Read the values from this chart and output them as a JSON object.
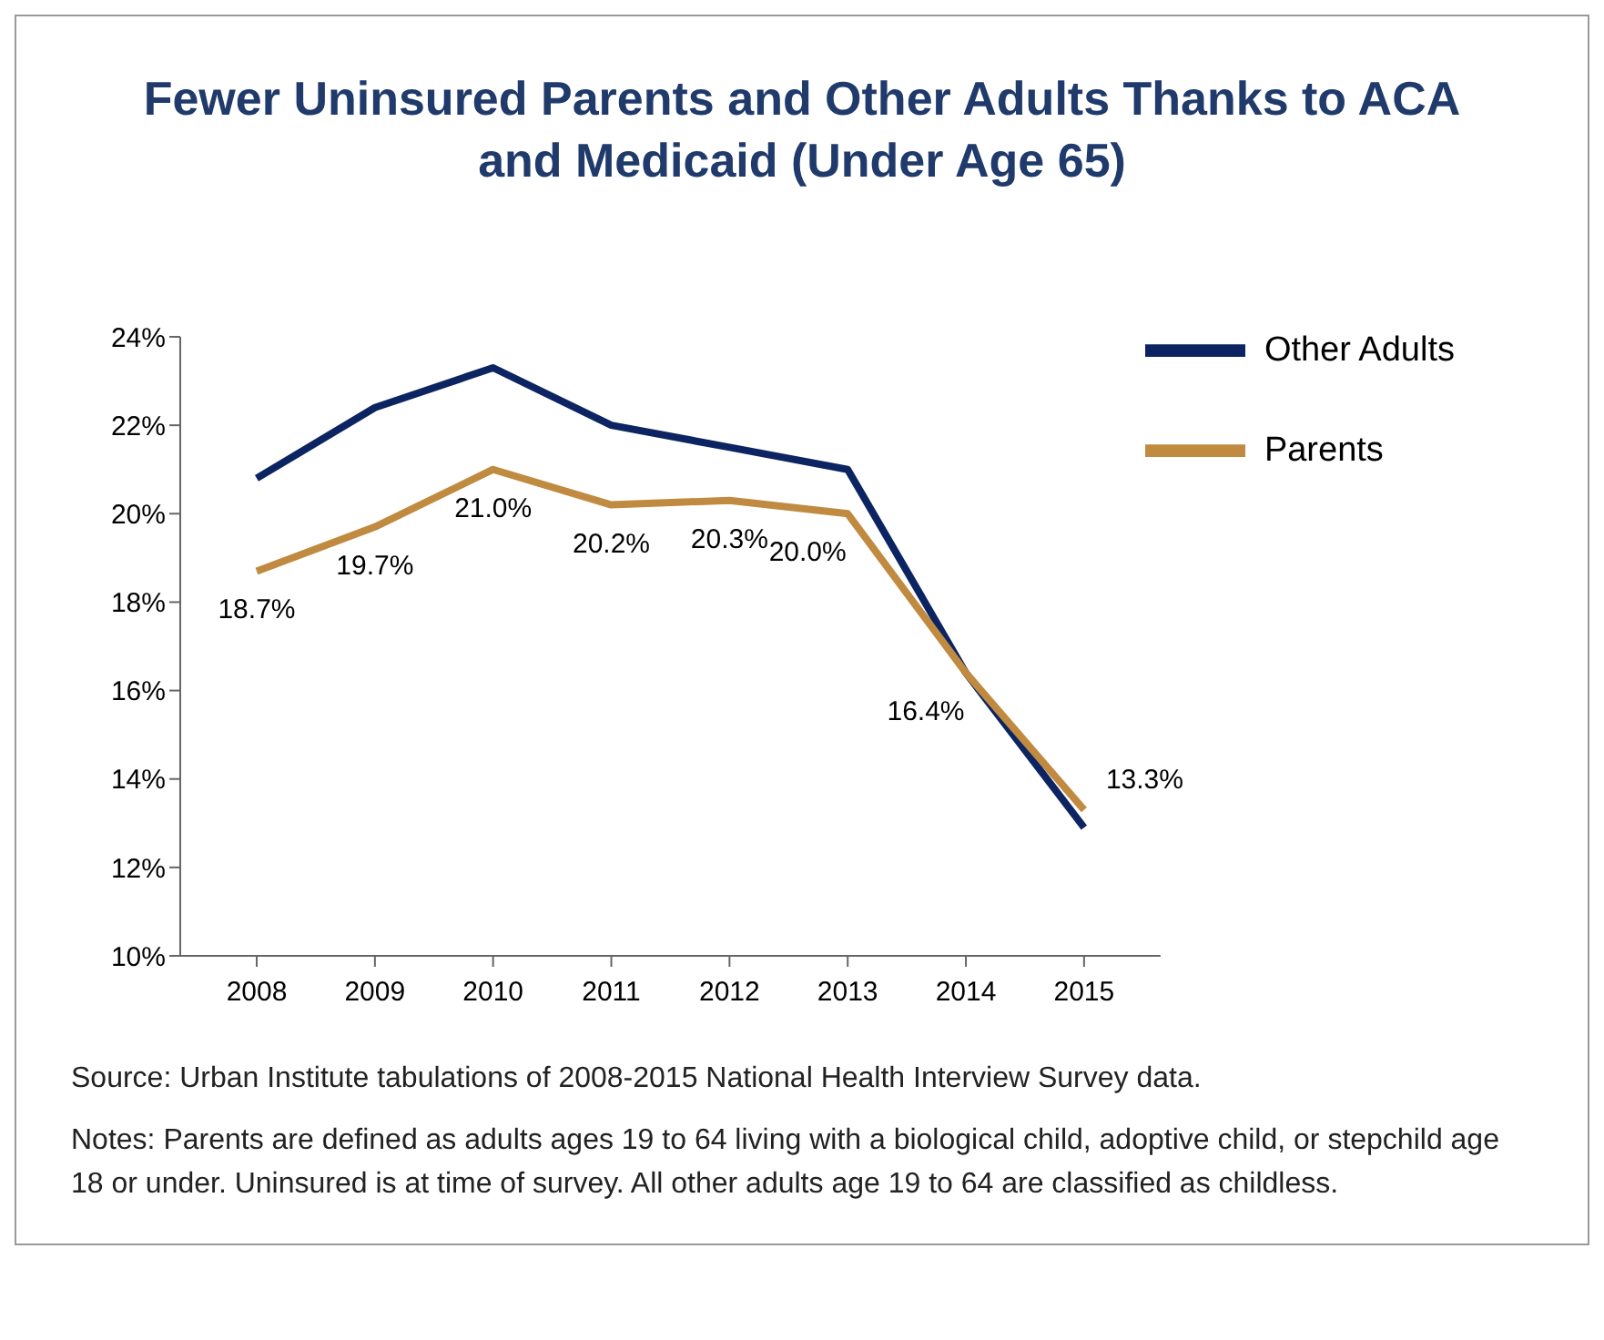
{
  "chart_data": {
    "type": "line",
    "title": "Fewer Uninsured Parents and Other Adults Thanks to ACA and Medicaid (Under Age 65)",
    "categories": [
      "2008",
      "2009",
      "2010",
      "2011",
      "2012",
      "2013",
      "2014",
      "2015"
    ],
    "series": [
      {
        "name": "Other Adults",
        "color": "#0c2461",
        "values": [
          20.8,
          22.4,
          23.3,
          22.0,
          21.5,
          21.0,
          16.4,
          12.9
        ]
      },
      {
        "name": "Parents",
        "color": "#c08a40",
        "values": [
          18.7,
          19.7,
          21.0,
          20.2,
          20.3,
          20.0,
          16.4,
          13.3
        ],
        "value_labels": [
          "18.7%",
          "19.7%",
          "21.0%",
          "20.2%",
          "20.3%",
          "20.0%",
          "16.4%",
          "13.3%"
        ]
      }
    ],
    "ylim": [
      10,
      24
    ],
    "yticks": [
      {
        "value": 10,
        "label": "10%"
      },
      {
        "value": 12,
        "label": "12%"
      },
      {
        "value": 14,
        "label": "14%"
      },
      {
        "value": 16,
        "label": "16%"
      },
      {
        "value": 18,
        "label": "18%"
      },
      {
        "value": 20,
        "label": "20%"
      },
      {
        "value": 22,
        "label": "22%"
      },
      {
        "value": 24,
        "label": "24%"
      }
    ],
    "grid": false,
    "legend": "top right",
    "annotations": [
      "Source: Urban Institute tabulations of 2008-2015 National Health Interview Survey data.",
      "Notes: Parents are defined as adults ages 19 to 64 living with a biological child, adoptive child, or stepchild age 18 or under. Uninsured is at time of survey. All other adults age 19 to 64 are classified as childless."
    ]
  }
}
